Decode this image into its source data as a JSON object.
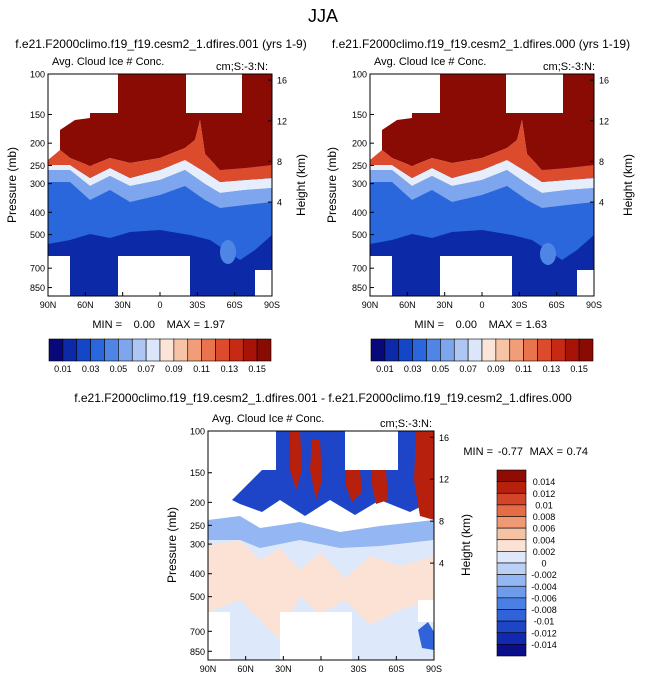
{
  "main_title": "JJA",
  "colors": {
    "bg": "#ffffff",
    "ink": "#000000",
    "positive_palette": [
      "#08087a",
      "#0c2aa8",
      "#1446c8",
      "#2a66dc",
      "#4f86e6",
      "#7ea6ee",
      "#adc6f4",
      "#dbe6fa",
      "#fbe4d8",
      "#f7c3a7",
      "#f19d78",
      "#e8734d",
      "#dc4b2c",
      "#c62a14",
      "#a81308",
      "#8a0a04"
    ],
    "diff_palette": [
      "#0a0e8c",
      "#1228ae",
      "#1e44c8",
      "#3062da",
      "#4a80e6",
      "#6e9cec",
      "#94b6f2",
      "#bcd0f6",
      "#dde8fa",
      "#fbe2d4",
      "#f6c2a4",
      "#f09a74",
      "#e56c44",
      "#d44426",
      "#b8200e",
      "#8e0c04"
    ]
  },
  "chart_data": [
    {
      "type": "heatmap",
      "id": "left_panel",
      "title": "f.e21.F2000climo.f19_f19.cesm2_1.dfires.001 (yrs 1-9)",
      "left_string": "Avg. Cloud Ice # Conc.",
      "right_string": "cm;S:-3:N:",
      "ylabel": "Pressure (mb)",
      "y2label": "Height (km)",
      "x_ticks": [
        "90N",
        "60N",
        "30N",
        "0",
        "30S",
        "60S",
        "90S"
      ],
      "p_ticks": [
        "100",
        "150",
        "200",
        "250",
        "300",
        "400",
        "500",
        "700",
        "850"
      ],
      "p_tick_values": [
        100,
        150,
        200,
        250,
        300,
        400,
        500,
        700,
        850
      ],
      "h_ticks": [
        "16",
        "12",
        "8",
        "4"
      ],
      "h_tick_values": [
        16,
        12,
        8,
        4
      ],
      "ylim": [
        100,
        925
      ],
      "min_label": "MIN =",
      "min_value": "0.00",
      "max_label": "MAX =",
      "max_value": "1.97",
      "colorbar_labels": [
        "0.01",
        "0.03",
        "0.05",
        "0.07",
        "0.09",
        "0.11",
        "0.13",
        "0.15"
      ],
      "colorbar_levels": [
        0.01,
        0.02,
        0.03,
        0.04,
        0.05,
        0.06,
        0.07,
        0.08,
        0.09,
        0.1,
        0.11,
        0.12,
        0.13,
        0.14,
        0.15
      ]
    },
    {
      "type": "heatmap",
      "id": "right_panel",
      "title": "f.e21.F2000climo.f19_f19.cesm2_1.dfires.000 (yrs 1-19)",
      "left_string": "Avg. Cloud Ice # Conc.",
      "right_string": "cm;S:-3:N:",
      "ylabel": "Pressure (mb)",
      "y2label": "Height (km)",
      "x_ticks": [
        "90N",
        "60N",
        "30N",
        "0",
        "30S",
        "60S",
        "90S"
      ],
      "p_ticks": [
        "100",
        "150",
        "200",
        "250",
        "300",
        "400",
        "500",
        "700",
        "850"
      ],
      "p_tick_values": [
        100,
        150,
        200,
        250,
        300,
        400,
        500,
        700,
        850
      ],
      "h_ticks": [
        "16",
        "12",
        "8",
        "4"
      ],
      "h_tick_values": [
        16,
        12,
        8,
        4
      ],
      "ylim": [
        100,
        925
      ],
      "min_label": "MIN =",
      "min_value": "0.00",
      "max_label": "MAX =",
      "max_value": "1.63",
      "colorbar_labels": [
        "0.01",
        "0.03",
        "0.05",
        "0.07",
        "0.09",
        "0.11",
        "0.13",
        "0.15"
      ],
      "colorbar_levels": [
        0.01,
        0.02,
        0.03,
        0.04,
        0.05,
        0.06,
        0.07,
        0.08,
        0.09,
        0.1,
        0.11,
        0.12,
        0.13,
        0.14,
        0.15
      ]
    },
    {
      "type": "heatmap",
      "id": "diff_panel",
      "title": "f.e21.F2000climo.f19_f19.cesm2_1.dfires.001 - f.e21.F2000climo.f19_f19.cesm2_1.dfires.000",
      "left_string": "Avg. Cloud Ice # Conc.",
      "right_string": "cm;S:-3:N:",
      "ylabel": "Pressure (mb)",
      "y2label": "Height (km)",
      "x_ticks": [
        "90N",
        "60N",
        "30N",
        "0",
        "30S",
        "60S",
        "90S"
      ],
      "p_ticks": [
        "100",
        "150",
        "200",
        "250",
        "300",
        "400",
        "500",
        "700",
        "850"
      ],
      "p_tick_values": [
        100,
        150,
        200,
        250,
        300,
        400,
        500,
        700,
        850
      ],
      "h_ticks": [
        "16",
        "12",
        "8",
        "4"
      ],
      "h_tick_values": [
        16,
        12,
        8,
        4
      ],
      "ylim": [
        100,
        925
      ],
      "min_label": "MIN =",
      "min_value": "-0.77",
      "max_label": "MAX =",
      "max_value": "0.74",
      "colorbar_labels": [
        "0.014",
        "0.012",
        "0.01",
        "0.008",
        "0.006",
        "0.004",
        "0.002",
        "0",
        "-0.002",
        "-0.004",
        "-0.006",
        "-0.008",
        "-0.01",
        "-0.012",
        "-0.014"
      ],
      "colorbar_levels": [
        0.014,
        0.012,
        0.01,
        0.008,
        0.006,
        0.004,
        0.002,
        0,
        -0.002,
        -0.004,
        -0.006,
        -0.008,
        -0.01,
        -0.012,
        -0.014
      ]
    }
  ]
}
